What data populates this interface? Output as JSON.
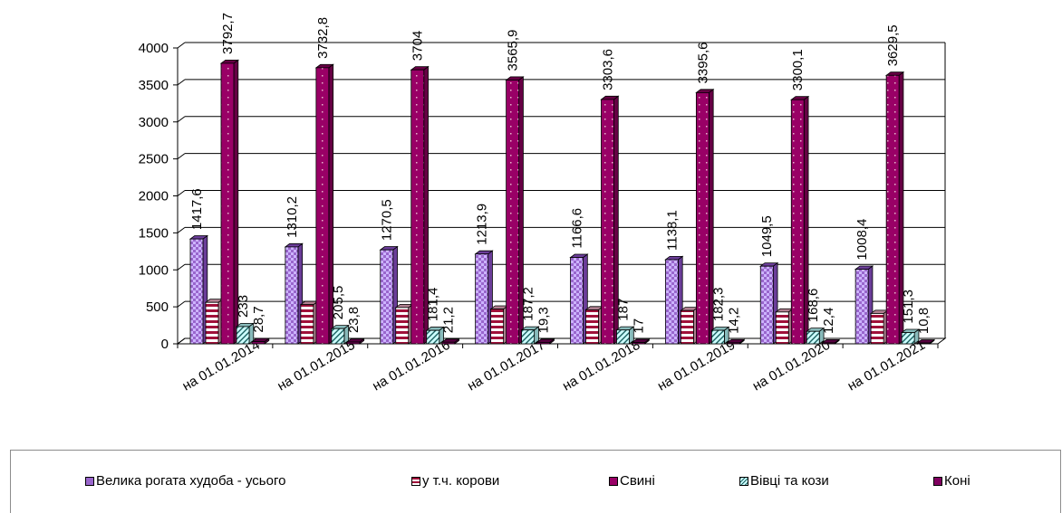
{
  "chart_data": {
    "type": "bar",
    "categories": [
      "на 01.01.2014",
      "на 01.01.2015",
      "на 01.01.2016",
      "на 01.01.2017",
      "на 01.01.2018",
      "на 01.01.2019",
      "на 01.01.2020",
      "на 01.01.2021"
    ],
    "series": [
      {
        "name": "Велика рогата худоба - усього",
        "values": [
          1417.6,
          1310.2,
          1270.5,
          1213.9,
          1166.6,
          1138.1,
          1049.5,
          1008.4
        ],
        "labels": [
          "1417,6",
          "1310,2",
          "1270,5",
          "1213,9",
          "1166,6",
          "1138,1",
          "1049,5",
          "1008,4"
        ],
        "color": "#9966cc",
        "pattern": "checker"
      },
      {
        "name": "у т.ч. корови",
        "values": [
          560,
          530,
          490,
          470,
          460,
          450,
          430,
          410
        ],
        "labels": [
          "",
          "",
          "",
          "",
          "",
          "",
          "",
          ""
        ],
        "color": "#ffffff",
        "pattern": "hstripes"
      },
      {
        "name": "Свині",
        "values": [
          3792.7,
          3732.8,
          3704,
          3565.9,
          3303.6,
          3395.6,
          3300.1,
          3629.5
        ],
        "labels": [
          "3792,7",
          "3732,8",
          "3704",
          "3565,9",
          "3303,6",
          "3395,6",
          "3300,1",
          "3629,5"
        ],
        "color": "#990066",
        "pattern": "dots"
      },
      {
        "name": "Вівці та кози",
        "values": [
          233,
          205.5,
          181.4,
          187.2,
          187,
          182.3,
          168.6,
          151.3
        ],
        "labels": [
          "233",
          "205,5",
          "181,4",
          "187,2",
          "187",
          "182,3",
          "168,6",
          "151,3"
        ],
        "color": "#ccffff",
        "pattern": "diag"
      },
      {
        "name": "Коні",
        "values": [
          28.7,
          23.8,
          21.2,
          19.3,
          17,
          14.2,
          12.4,
          10.8
        ],
        "labels": [
          "28,7",
          "23,8",
          "21,2",
          "19,3",
          "17",
          "14,2",
          "12,4",
          "10,8"
        ],
        "color": "#800060",
        "pattern": "solid"
      }
    ],
    "ylim": [
      0,
      4000
    ],
    "yticks": [
      0,
      500,
      1000,
      1500,
      2000,
      2500,
      3000,
      3500,
      4000
    ],
    "grid": true,
    "legend": "bottom",
    "title": "",
    "xlabel": "",
    "ylabel": ""
  }
}
